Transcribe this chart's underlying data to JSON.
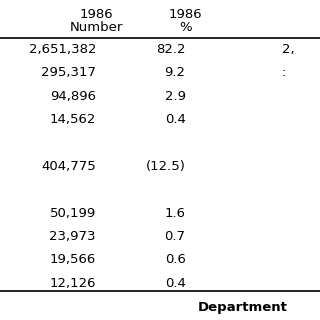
{
  "col1_header": [
    "1986",
    "Number"
  ],
  "col2_header": [
    "1986",
    "%"
  ],
  "rows": [
    [
      "2,651,382",
      "82.2",
      "2,"
    ],
    [
      "295,317",
      "9.2",
      ":"
    ],
    [
      "94,896",
      "2.9",
      ""
    ],
    [
      "14,562",
      "0.4",
      ""
    ],
    [
      "",
      "",
      ""
    ],
    [
      "404,775",
      "(12.5)",
      ""
    ],
    [
      "",
      "",
      ""
    ],
    [
      "50,199",
      "1.6",
      ""
    ],
    [
      "23,973",
      "0.7",
      ""
    ],
    [
      "19,566",
      "0.6",
      ""
    ],
    [
      "12,126",
      "0.4",
      ""
    ]
  ],
  "footer_text": "Department",
  "bg_color": "#ffffff",
  "text_color": "#000000",
  "font_size": 9.5,
  "header_font_size": 9.5
}
